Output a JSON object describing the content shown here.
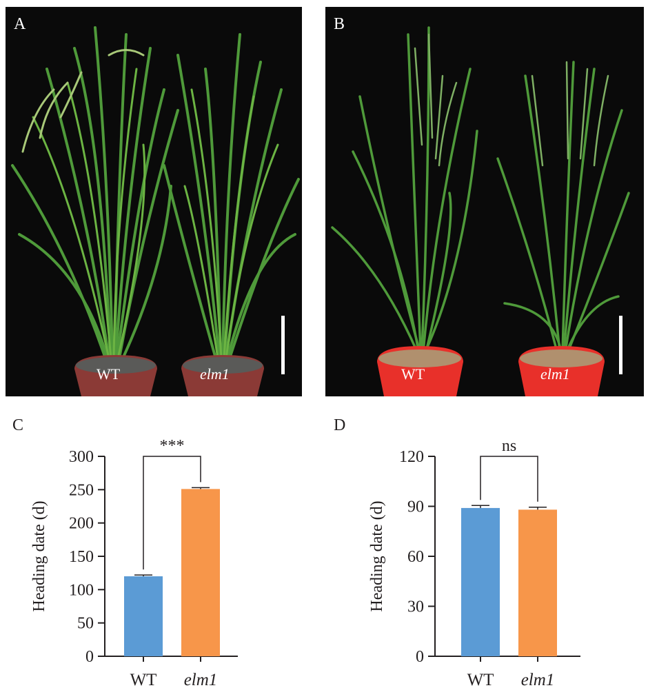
{
  "panels": {
    "A": {
      "letter": "A",
      "labels": [
        "WT",
        "elm1"
      ]
    },
    "B": {
      "letter": "B",
      "labels": [
        "WT",
        "elm1"
      ]
    }
  },
  "chart_data": [
    {
      "panel": "C",
      "type": "bar",
      "categories": [
        "WT",
        "elm1"
      ],
      "values": [
        120,
        251
      ],
      "errors": [
        2,
        2
      ],
      "ylabel": "Heading date (d)",
      "ylim": [
        0,
        300
      ],
      "yticks": [
        0,
        50,
        100,
        150,
        200,
        250,
        300
      ],
      "significance": "***",
      "colors": [
        "#5b9bd5",
        "#f7964a"
      ],
      "grid": false
    },
    {
      "panel": "D",
      "type": "bar",
      "categories": [
        "WT",
        "elm1"
      ],
      "values": [
        89,
        88
      ],
      "errors": [
        1.5,
        1.5
      ],
      "ylabel": "Heading date (d)",
      "ylim": [
        0,
        120
      ],
      "yticks": [
        0,
        30,
        60,
        90,
        120
      ],
      "significance": "ns",
      "colors": [
        "#5b9bd5",
        "#f7964a"
      ],
      "grid": false
    }
  ]
}
